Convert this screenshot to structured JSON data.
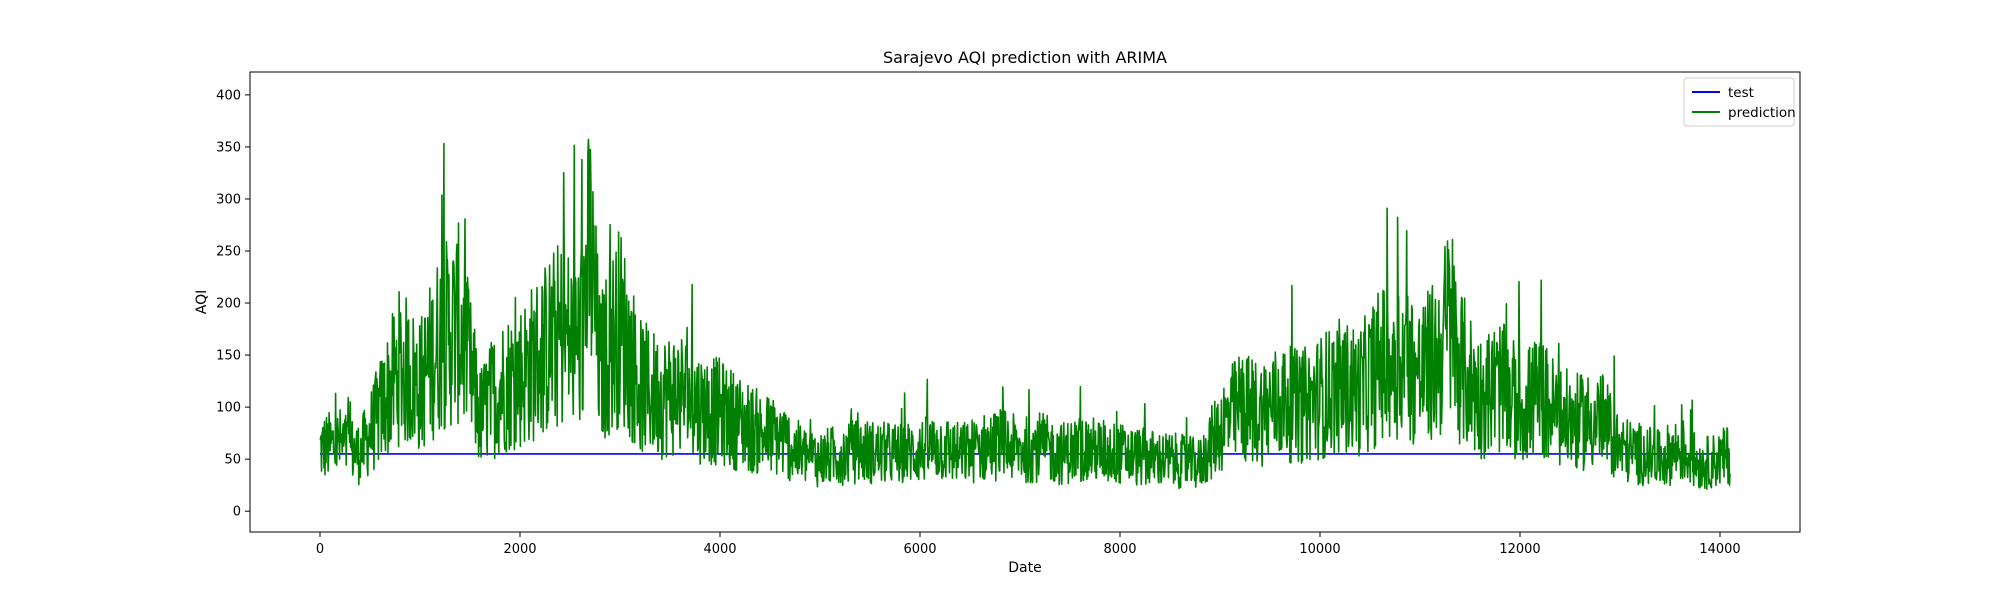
{
  "chart_data": {
    "type": "line",
    "title": "Sarajevo AQI prediction with ARIMA",
    "xlabel": "Date",
    "ylabel": "AQI",
    "xlim": [
      -700,
      14800
    ],
    "ylim": [
      -20,
      422
    ],
    "x_ticks": [
      0,
      2000,
      4000,
      6000,
      8000,
      10000,
      12000,
      14000
    ],
    "y_ticks": [
      0,
      50,
      100,
      150,
      200,
      250,
      300,
      350,
      400
    ],
    "grid": false,
    "legend_position": "top-right",
    "series": [
      {
        "name": "test",
        "color": "#0000ff",
        "x": [
          0,
          14100
        ],
        "y": [
          55,
          55
        ]
      },
      {
        "name": "prediction",
        "color": "#008000",
        "x": [
          0,
          200,
          400,
          600,
          800,
          1000,
          1200,
          1400,
          1600,
          1800,
          2000,
          2200,
          2400,
          2600,
          2700,
          2800,
          3000,
          3200,
          3400,
          3600,
          3800,
          4000,
          4200,
          4400,
          4600,
          4800,
          5000,
          5200,
          5400,
          5600,
          5800,
          6000,
          6200,
          6400,
          6600,
          6800,
          7000,
          7200,
          7400,
          7600,
          7800,
          8000,
          8200,
          8400,
          8600,
          8800,
          9000,
          9200,
          9400,
          9600,
          9800,
          10000,
          10200,
          10400,
          10600,
          10800,
          11000,
          11200,
          11300,
          11400,
          11600,
          11800,
          12000,
          12200,
          12400,
          12600,
          12800,
          13000,
          13200,
          13400,
          13600,
          13800,
          14000,
          14100
        ],
        "y": [
          60,
          65,
          55,
          95,
          140,
          120,
          165,
          180,
          90,
          120,
          130,
          150,
          170,
          160,
          250,
          135,
          180,
          120,
          110,
          115,
          100,
          95,
          85,
          75,
          70,
          55,
          50,
          55,
          58,
          56,
          55,
          58,
          62,
          55,
          60,
          65,
          58,
          62,
          55,
          60,
          58,
          55,
          52,
          50,
          48,
          45,
          80,
          100,
          95,
          105,
          100,
          110,
          120,
          115,
          140,
          150,
          130,
          150,
          190,
          140,
          110,
          120,
          100,
          110,
          90,
          85,
          90,
          60,
          55,
          50,
          60,
          45,
          50,
          55
        ]
      }
    ]
  }
}
